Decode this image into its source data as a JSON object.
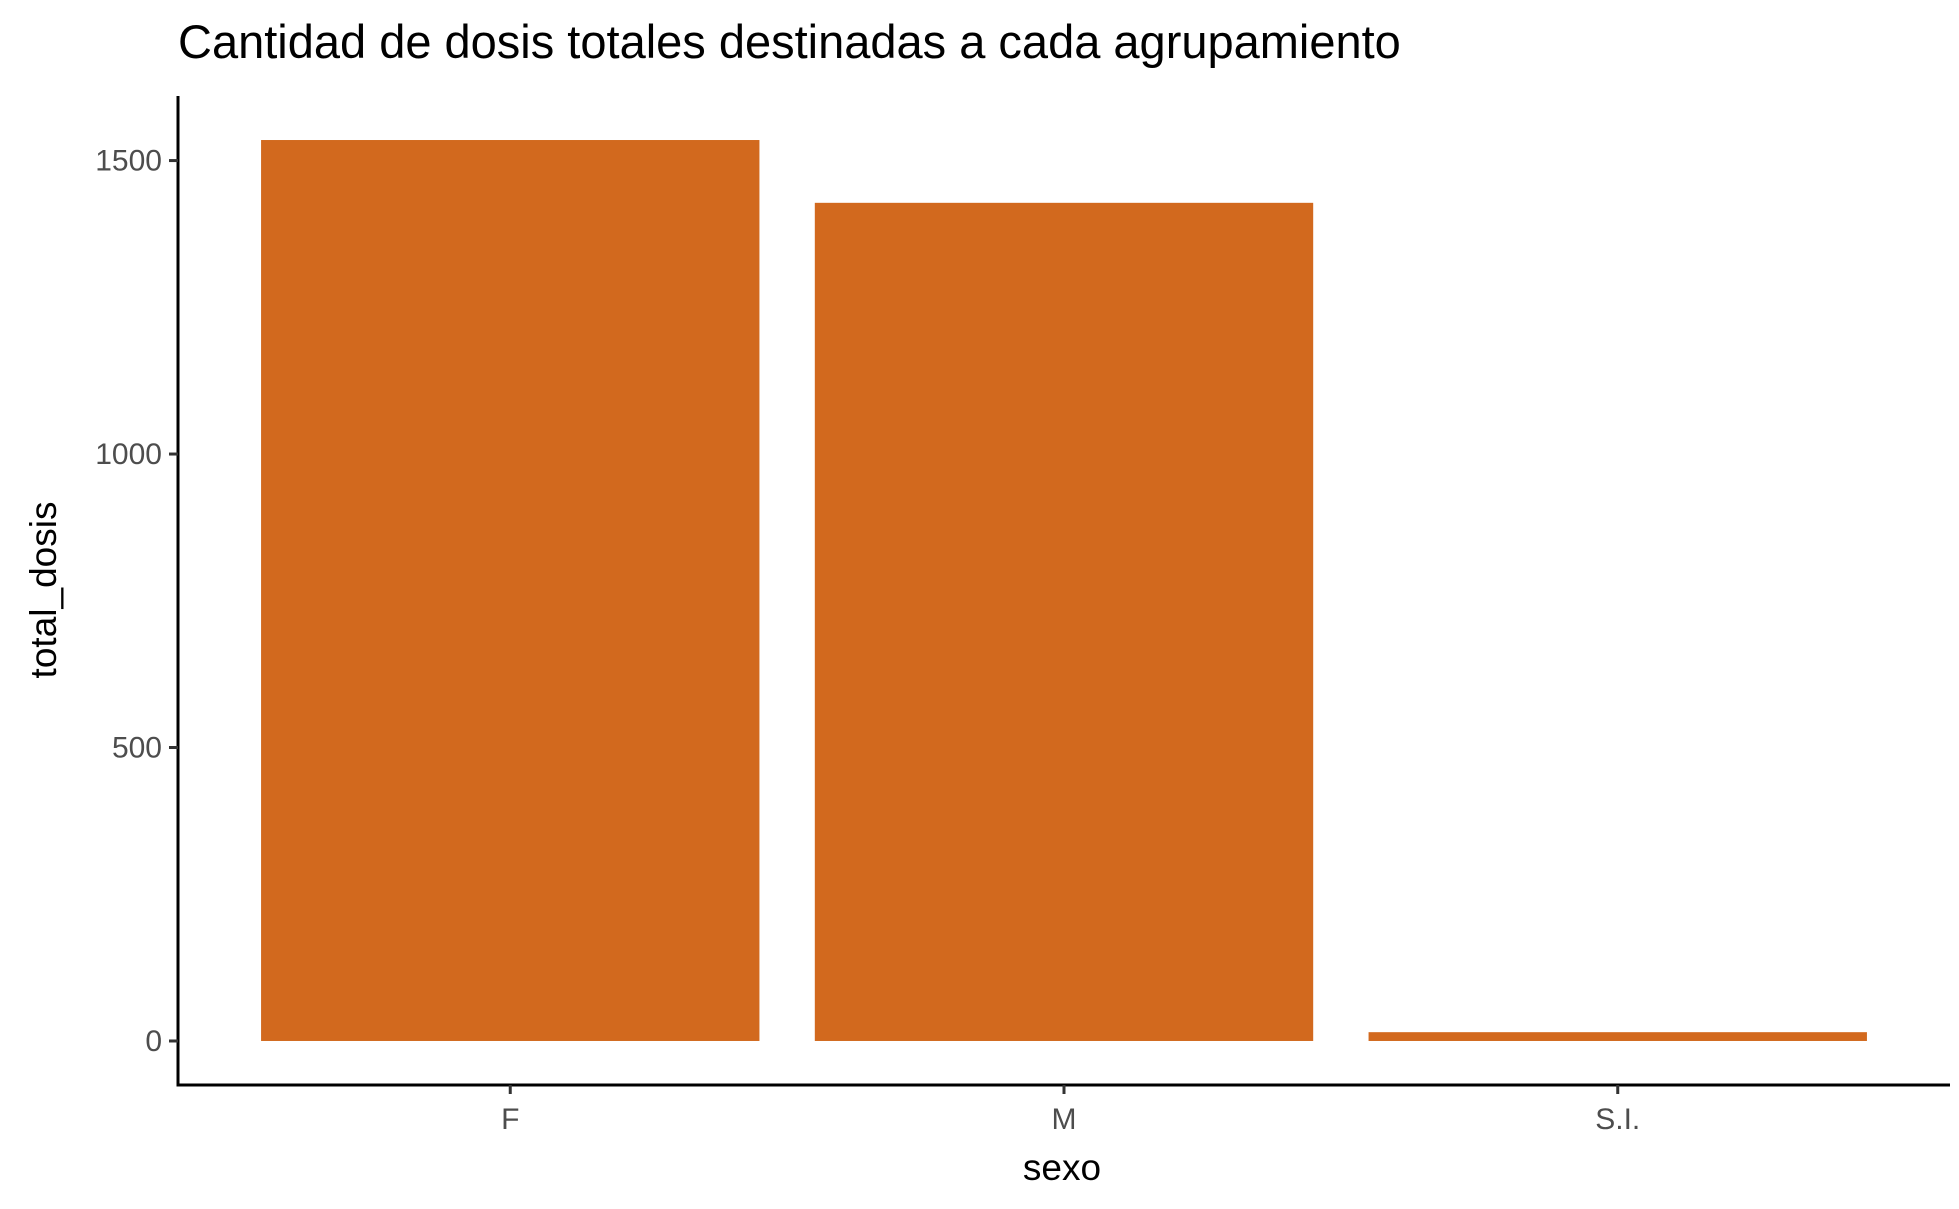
{
  "chart_data": {
    "type": "bar",
    "title": "Cantidad de dosis totales destinadas a cada agrupamiento",
    "xlabel": "sexo",
    "ylabel": "total_dosis",
    "categories": [
      "F",
      "M",
      "S.I."
    ],
    "values": [
      1535,
      1428,
      15
    ],
    "ylim": [
      -75,
      1610
    ],
    "yticks": [
      0,
      500,
      1000,
      1500
    ],
    "grid": false,
    "legend": "none",
    "bar_color": "#D2691E"
  }
}
